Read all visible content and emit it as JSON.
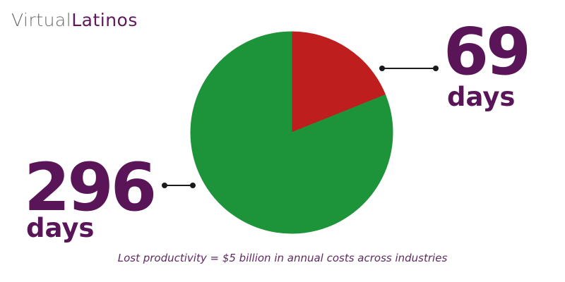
{
  "logo": {
    "part1": "Virtual",
    "part2": "Latinos"
  },
  "colors": {
    "slice_small": "#bf1e1e",
    "slice_large": "#1e943a",
    "accent": "#5a1558"
  },
  "chart_data": {
    "type": "pie",
    "slices": [
      {
        "value": 69,
        "label": "69",
        "unit": "days",
        "color": "#bf1e1e"
      },
      {
        "value": 296,
        "label": "296",
        "unit": "days",
        "color": "#1e943a"
      }
    ],
    "start_angle_deg": 0,
    "direction": "clockwise-from-right",
    "caption": "Lost productivity = $5 billion in annual costs across industries"
  }
}
